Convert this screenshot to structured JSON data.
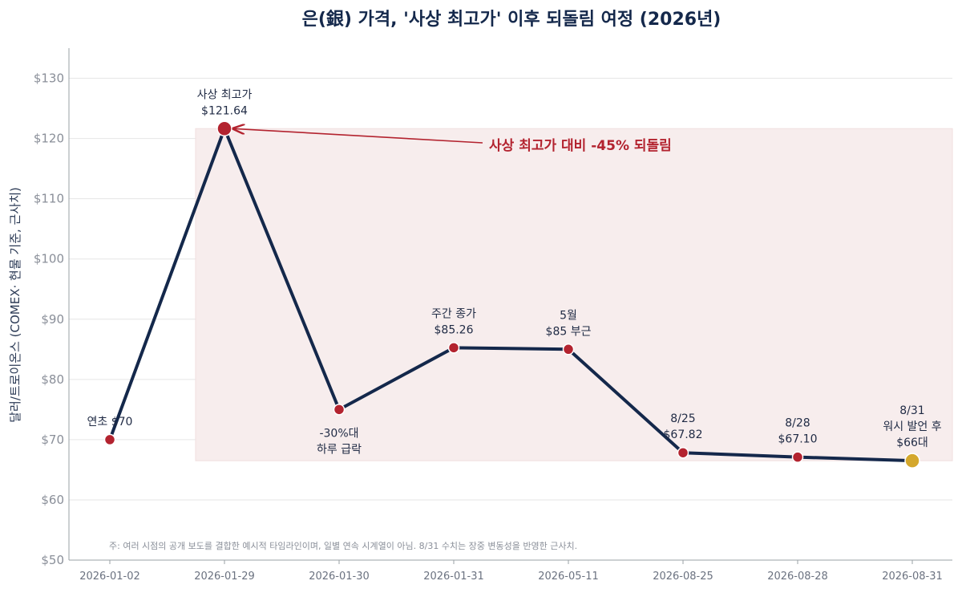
{
  "chart_data": {
    "type": "line",
    "title": "은(銀) 가격, '사상 최고가' 이후 되돌림 여정 (2026년)",
    "ylabel": "달러/트로이온스 (COMEX· 현물 기준, 근사치)",
    "xlabel": "",
    "ylim": [
      50,
      135
    ],
    "yticks": [
      50,
      60,
      70,
      80,
      90,
      100,
      110,
      120,
      130
    ],
    "ytick_labels": [
      "$50",
      "$60",
      "$70",
      "$80",
      "$90",
      "$100",
      "$110",
      "$120",
      "$130"
    ],
    "grid": true,
    "categories": [
      "2026-01-02",
      "2026-01-29",
      "2026-01-30",
      "2026-01-31",
      "2026-05-11",
      "2026-08-25",
      "2026-08-28",
      "2026-08-31"
    ],
    "series": [
      {
        "values": [
          70,
          121.64,
          75,
          85.26,
          85,
          67.82,
          67.1,
          66.5
        ],
        "line_color": "#14284b",
        "point_color": "#b3232f",
        "last_point_color": "#d4a72c"
      }
    ],
    "point_labels": [
      [
        "연초 $70"
      ],
      [
        "사상 최고가",
        "$121.64"
      ],
      [
        "-30%대",
        "하루 급락"
      ],
      [
        "주간 종가",
        "$85.26"
      ],
      [
        "5월",
        "$85 부근"
      ],
      [
        "8/25",
        "$67.82"
      ],
      [
        "8/28",
        "$67.10"
      ],
      [
        "8/31",
        "워시 발언 후",
        "$66대"
      ]
    ],
    "shaded_region": {
      "x_from": "2026-01-29",
      "x_to": "2026-08-31",
      "y_from": 66.5,
      "y_to": 121.64,
      "color": "#f7eded"
    },
    "annotation": {
      "text": "사상 최고가 대비 -45% 되돌림",
      "points_to": "2026-01-29",
      "color": "#b3232f"
    },
    "footnote": "주: 여러 시점의 공개 보도를 결합한 예시적 타임라인이며, 일별 연속 시계열이 아님. 8/31 수치는 장중 변동성을 반영한 근사치."
  }
}
